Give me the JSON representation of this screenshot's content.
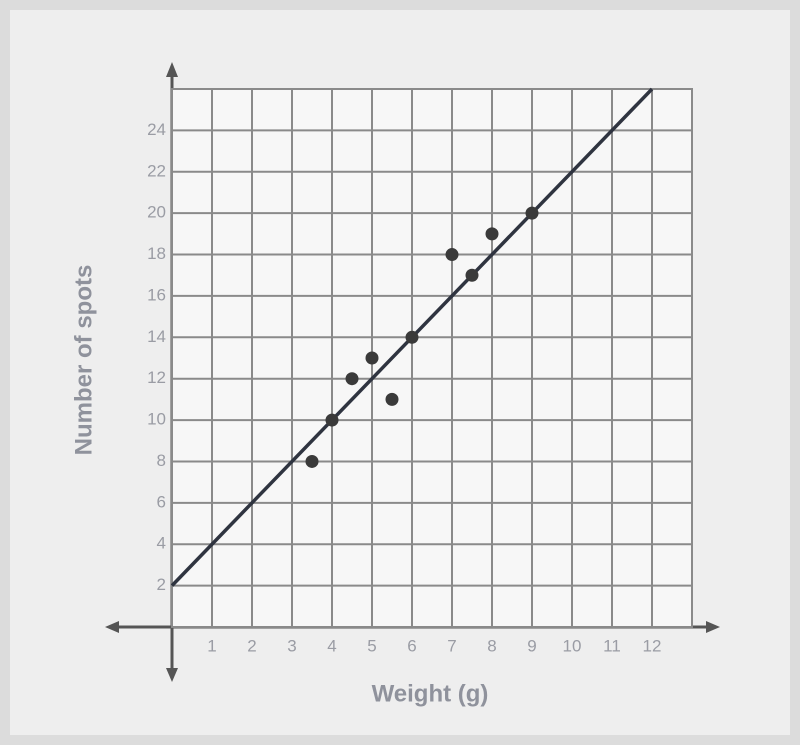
{
  "chart_data": {
    "type": "scatter",
    "x_label": "Weight (g)",
    "y_label": "Number of spots",
    "x": [
      3.5,
      4,
      4.5,
      5,
      5.5,
      6,
      7,
      7.5,
      8,
      9
    ],
    "values": [
      8,
      10,
      12,
      13,
      11,
      14,
      18,
      17,
      19,
      20
    ],
    "color": "#3a3a3a",
    "trend_line": {
      "x": [
        0,
        12
      ],
      "values": [
        2,
        26
      ],
      "color": "#2f3440"
    },
    "xlim": [
      0,
      13
    ],
    "ylim": [
      0,
      26
    ],
    "xticks": [
      1,
      2,
      3,
      4,
      5,
      6,
      7,
      8,
      9,
      10,
      11,
      12
    ],
    "yticks": [
      2,
      4,
      6,
      8,
      10,
      12,
      14,
      16,
      18,
      20,
      22,
      24
    ],
    "grid": true
  }
}
